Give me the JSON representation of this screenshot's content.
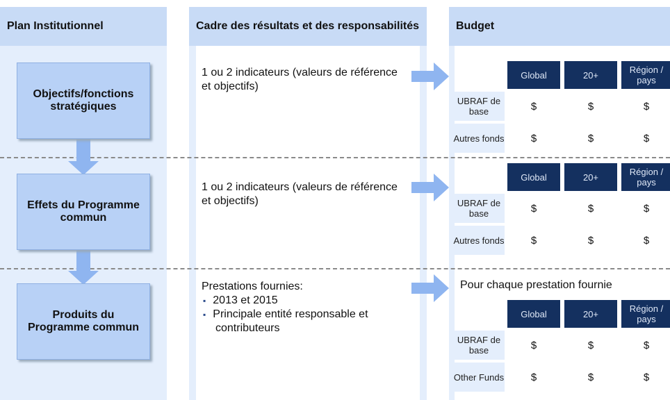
{
  "columns": [
    {
      "title": "Plan Institutionnel"
    },
    {
      "title": "Cadre des résultats et des responsabilités"
    },
    {
      "title": "Budget"
    }
  ],
  "rows": [
    {
      "objective": "Objectifs/fonctions stratégiques",
      "framework": {
        "intro": "1 ou 2 indicateurs (valeurs de référence et objectifs)",
        "bullets": []
      },
      "budget": {
        "headers": [
          "Global",
          "20+",
          "Région / pays"
        ],
        "rows": [
          {
            "label": "UBRAF de base",
            "cells": [
              "$",
              "$",
              "$"
            ]
          },
          {
            "label": "Autres fonds",
            "cells": [
              "$",
              "$",
              "$"
            ]
          }
        ]
      }
    },
    {
      "objective": "Effets du Programme commun",
      "framework": {
        "intro": "1 ou 2 indicateurs (valeurs de référence et objectifs)",
        "bullets": []
      },
      "budget": {
        "headers": [
          "Global",
          "20+",
          "Région / pays"
        ],
        "rows": [
          {
            "label": "UBRAF de base",
            "cells": [
              "$",
              "$",
              "$"
            ]
          },
          {
            "label": "Autres fonds",
            "cells": [
              "$",
              "$",
              "$"
            ]
          }
        ]
      }
    },
    {
      "objective": "Produits du Programme commun",
      "framework": {
        "intro": "Prestations fournies:",
        "bullets": [
          "2013 et 2015",
          "Principale entité responsable et contributeurs"
        ]
      },
      "budget": {
        "caption": "Pour chaque prestation fournie",
        "headers": [
          "Global",
          "20+",
          "Région / pays"
        ],
        "rows": [
          {
            "label": "UBRAF de base",
            "cells": [
              "$",
              "$",
              "$"
            ]
          },
          {
            "label": "Other Funds",
            "cells": [
              "$",
              "$",
              "$"
            ]
          }
        ]
      }
    }
  ]
}
